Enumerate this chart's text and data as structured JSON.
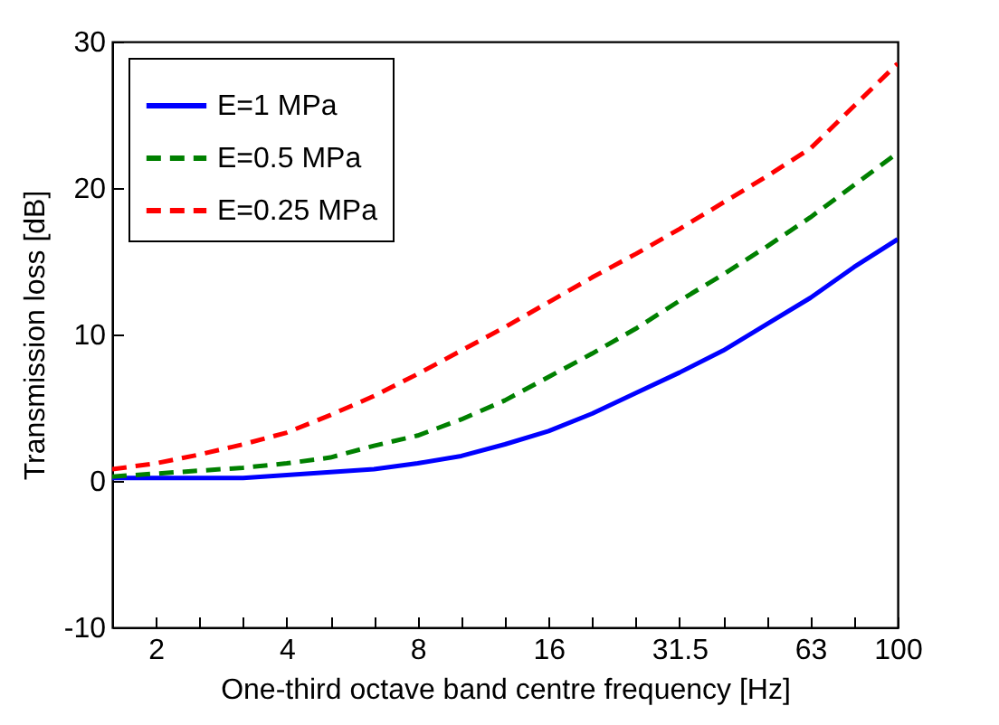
{
  "chart_data": {
    "type": "line",
    "xlabel": "One-third octave band centre frequency [Hz]",
    "ylabel": "Transmission loss [dB]",
    "categories": [
      null,
      "2",
      null,
      null,
      "4",
      null,
      null,
      "8",
      null,
      null,
      "16",
      null,
      null,
      "31.5",
      null,
      null,
      "63",
      null,
      "100"
    ],
    "ylim": [
      -10,
      30
    ],
    "yticks": [
      -10,
      0,
      10,
      20,
      30
    ],
    "grid": false,
    "legend": "top left",
    "marker": "none",
    "series": [
      {
        "name": "E=1 MPa",
        "color": "#0000ff",
        "line_style": "solid",
        "values": [
          0.2,
          0.2,
          0.2,
          0.2,
          0.4,
          0.6,
          0.8,
          1.2,
          1.7,
          2.5,
          3.4,
          4.6,
          6.0,
          7.4,
          8.9,
          10.7,
          12.5,
          14.6,
          16.5
        ]
      },
      {
        "name": "E=0.5 MPa",
        "color": "#008000",
        "line_style": "dashed",
        "values": [
          0.3,
          0.5,
          0.7,
          0.9,
          1.2,
          1.6,
          2.4,
          3.1,
          4.2,
          5.5,
          7.1,
          8.7,
          10.4,
          12.3,
          14.1,
          16.0,
          18.0,
          20.2,
          22.4
        ]
      },
      {
        "name": "E=0.25 MPa",
        "color": "#ff0000",
        "line_style": "dashed",
        "values": [
          0.8,
          1.2,
          1.8,
          2.5,
          3.3,
          4.5,
          5.8,
          7.3,
          8.9,
          10.5,
          12.2,
          13.9,
          15.5,
          17.2,
          19.0,
          20.8,
          22.7,
          25.6,
          28.5
        ]
      }
    ]
  }
}
